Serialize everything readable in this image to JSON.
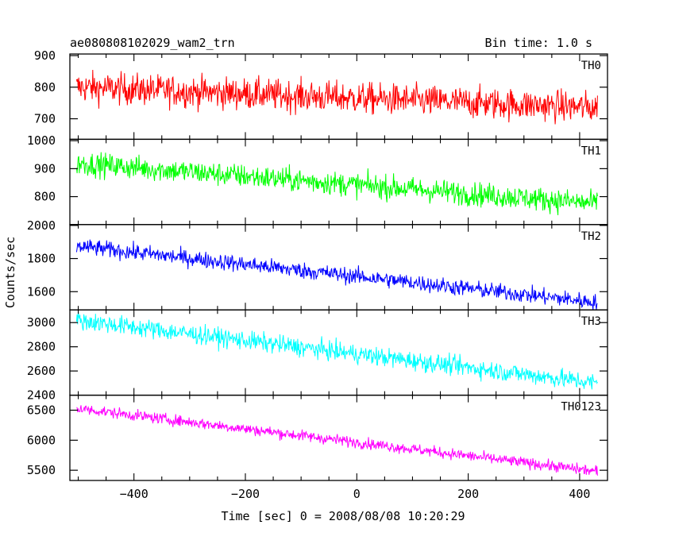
{
  "header": {
    "left": "ae080808102029_wam2_trn",
    "right": "Bin time: 1.0 s"
  },
  "axes": {
    "xlabel": "Time [sec] 0 = 2008/08/08 10:20:29",
    "ylabel": "Counts/sec",
    "xlim": [
      -515,
      450
    ],
    "xticks": [
      -400,
      -200,
      0,
      200,
      400
    ],
    "xtick_labels": [
      "−400",
      "−200",
      "0",
      "200",
      "400"
    ]
  },
  "chart_data": [
    {
      "type": "line",
      "title": "TH0",
      "color": "#ff0000",
      "x_range": [
        -503,
        432
      ],
      "trend": {
        "start": 800,
        "end": 735
      },
      "noise_amplitude": 35,
      "ylim": [
        635,
        905
      ],
      "yticks": [
        700,
        800,
        900
      ],
      "ytick_labels": [
        "700",
        "800",
        "900"
      ],
      "ylabel": ""
    },
    {
      "type": "line",
      "title": "TH1",
      "color": "#00ff00",
      "x_range": [
        -503,
        432
      ],
      "trend": {
        "start": 920,
        "end": 775
      },
      "noise_amplitude": 30,
      "ylim": [
        700,
        1005
      ],
      "yticks": [
        800,
        900,
        1000
      ],
      "ytick_labels": [
        "800",
        "900",
        "1000"
      ],
      "ylabel": ""
    },
    {
      "type": "line",
      "title": "TH2",
      "color": "#0000ff",
      "x_range": [
        -503,
        432
      ],
      "trend": {
        "start": 1875,
        "end": 1535
      },
      "noise_amplitude": 35,
      "ylim": [
        1490,
        2005
      ],
      "yticks": [
        1600,
        1800,
        2000
      ],
      "ytick_labels": [
        "1600",
        "1800",
        "2000"
      ],
      "ylabel": ""
    },
    {
      "type": "line",
      "title": "TH3",
      "color": "#00ffff",
      "x_range": [
        -503,
        432
      ],
      "trend": {
        "start": 3020,
        "end": 2500
      },
      "noise_amplitude": 55,
      "ylim": [
        2400,
        3105
      ],
      "yticks": [
        2400,
        2600,
        2800,
        3000
      ],
      "ytick_labels": [
        "2400",
        "2600",
        "2800",
        "3000"
      ],
      "ylabel": ""
    },
    {
      "type": "line",
      "title": "TH0123",
      "color": "#ff00ff",
      "x_range": [
        -503,
        432
      ],
      "trend": {
        "start": 6530,
        "end": 5480
      },
      "noise_amplitude": 65,
      "ylim": [
        5330,
        6750
      ],
      "yticks": [
        5500,
        6000,
        6500
      ],
      "ytick_labels": [
        "5500",
        "6000",
        "6500"
      ],
      "ylabel": ""
    }
  ]
}
